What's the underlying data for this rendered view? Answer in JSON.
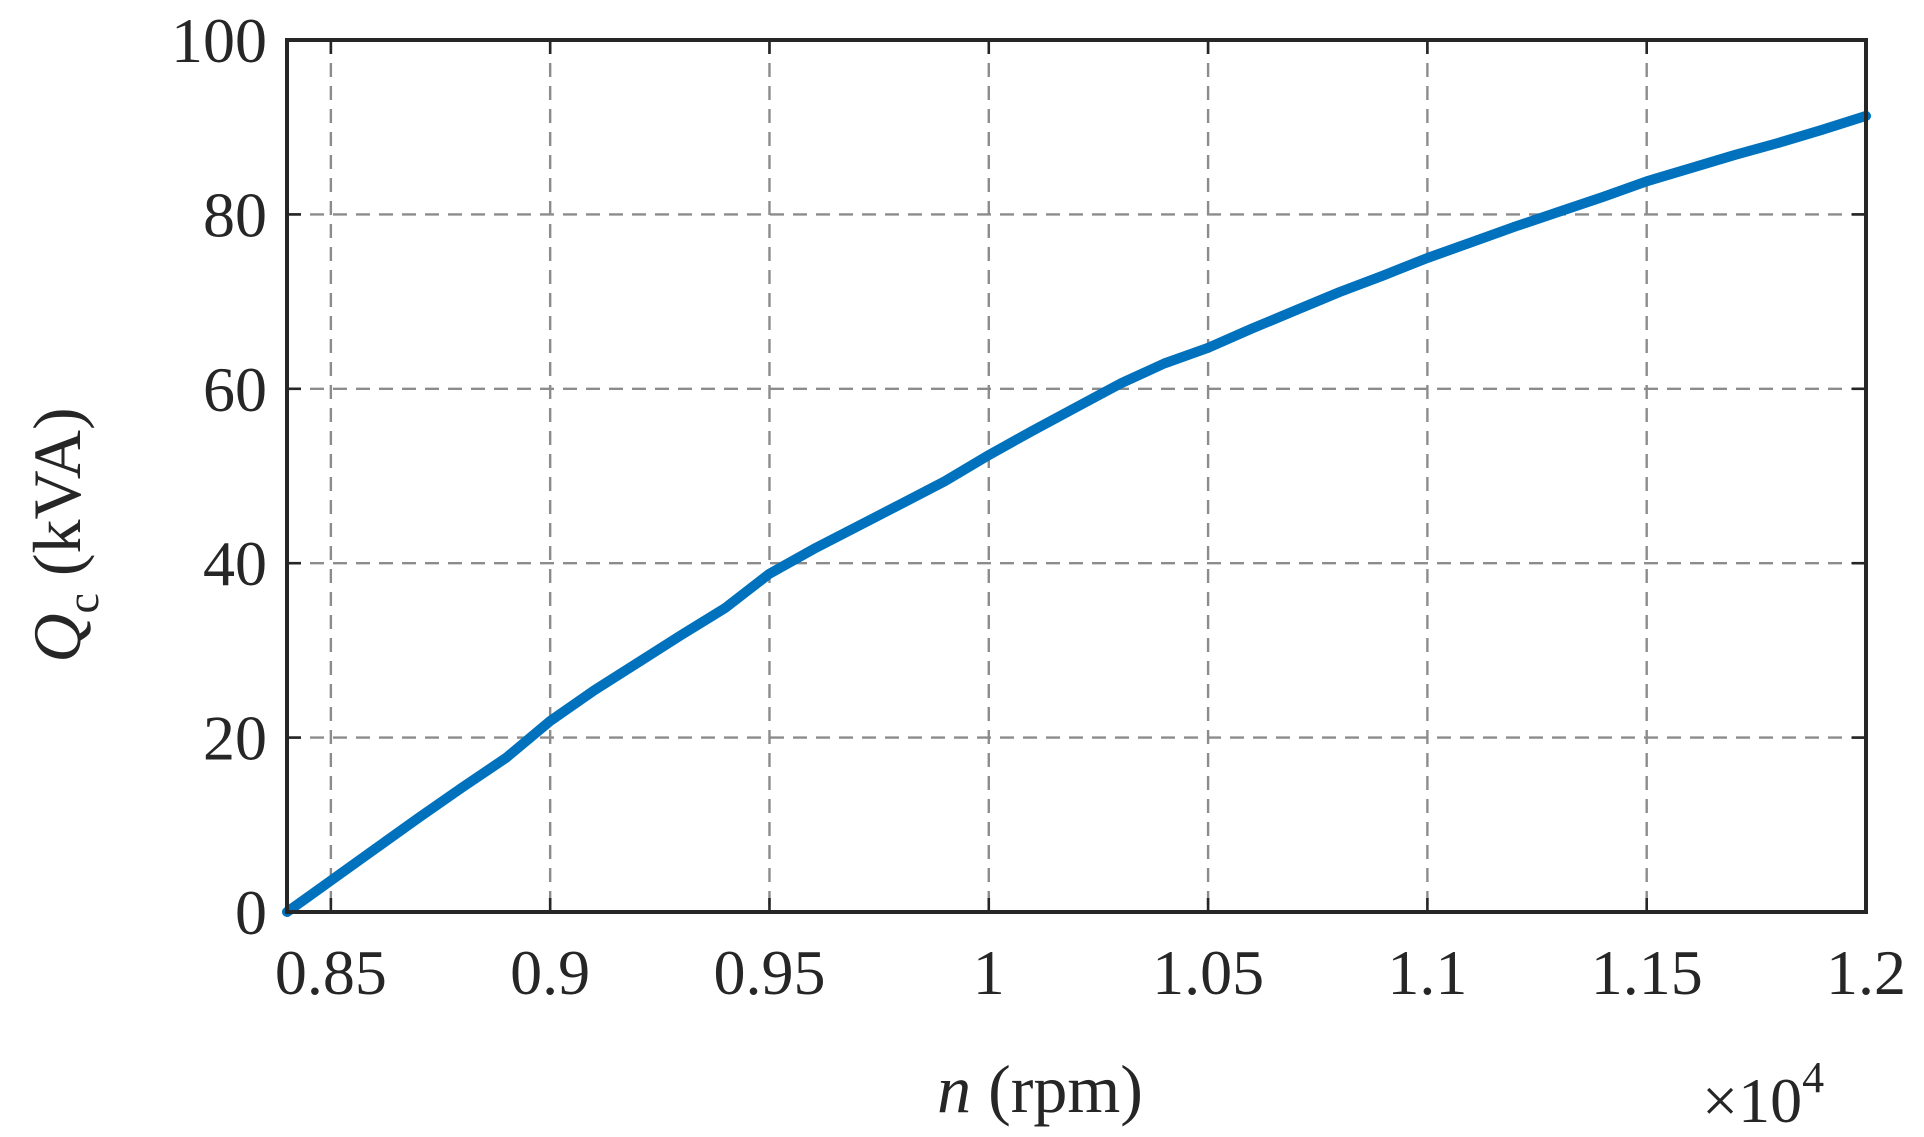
{
  "chart_data": {
    "type": "line",
    "title": "",
    "xlabel_var": "n",
    "xlabel_unit": " (rpm)",
    "ylabel_var": "Q",
    "ylabel_sub": "c",
    "ylabel_unit": " (kVA)",
    "x_multiplier": "×10",
    "x_multiplier_exp": "4",
    "xlim": [
      0.84,
      1.2
    ],
    "ylim": [
      0,
      100
    ],
    "xticks": [
      0.85,
      0.9,
      0.95,
      1.0,
      1.05,
      1.1,
      1.15,
      1.2
    ],
    "xtick_labels": [
      "0.85",
      "0.9",
      "0.95",
      "1",
      "1.05",
      "1.1",
      "1.15",
      "1.2"
    ],
    "yticks": [
      0,
      20,
      40,
      60,
      80,
      100
    ],
    "ytick_labels": [
      "0",
      "20",
      "40",
      "60",
      "80",
      "100"
    ],
    "grid": true,
    "series": [
      {
        "color": "#0072BD",
        "x": [
          0.84,
          0.85,
          0.86,
          0.87,
          0.88,
          0.89,
          0.9,
          0.91,
          0.92,
          0.93,
          0.94,
          0.95,
          0.96,
          0.97,
          0.98,
          0.99,
          1.0,
          1.01,
          1.02,
          1.03,
          1.04,
          1.05,
          1.06,
          1.07,
          1.08,
          1.09,
          1.1,
          1.11,
          1.12,
          1.13,
          1.14,
          1.15,
          1.16,
          1.17,
          1.18,
          1.19,
          1.2
        ],
        "y": [
          0.0,
          3.6,
          7.2,
          10.8,
          14.3,
          17.7,
          21.9,
          25.4,
          28.6,
          31.8,
          34.9,
          38.8,
          41.6,
          44.2,
          46.8,
          49.4,
          52.4,
          55.2,
          57.9,
          60.6,
          62.9,
          64.7,
          66.9,
          69.0,
          71.1,
          73.0,
          75.0,
          76.8,
          78.6,
          80.3,
          82.0,
          83.8,
          85.3,
          86.8,
          88.2,
          89.7,
          91.3
        ]
      }
    ]
  }
}
